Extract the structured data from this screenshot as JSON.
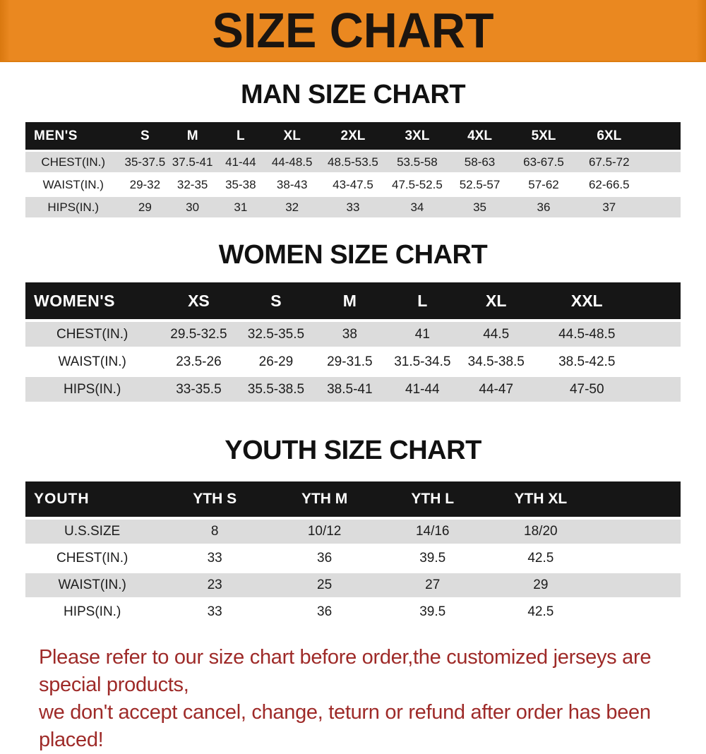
{
  "banner": {
    "title": "SIZE CHART"
  },
  "colors": {
    "banner_orange": "#E88620",
    "header_black": "#161616",
    "row_gray": "#DCDCDC",
    "footer_red": "#9E2A28"
  },
  "sections": [
    {
      "heading": "MAN SIZE CHART",
      "table": {
        "header_label": "MEN'S",
        "columns": [
          "S",
          "M",
          "L",
          "XL",
          "2XL",
          "3XL",
          "4XL",
          "5XL",
          "6XL"
        ],
        "rows": [
          {
            "label": "CHEST(IN.)",
            "values": [
              "35-37.5",
              "37.5-41",
              "41-44",
              "44-48.5",
              "48.5-53.5",
              "53.5-58",
              "58-63",
              "63-67.5",
              "67.5-72"
            ]
          },
          {
            "label": "WAIST(IN.)",
            "values": [
              "29-32",
              "32-35",
              "35-38",
              "38-43",
              "43-47.5",
              "47.5-52.5",
              "52.5-57",
              "57-62",
              "62-66.5"
            ]
          },
          {
            "label": "HIPS(IN.)",
            "values": [
              "29",
              "30",
              "31",
              "32",
              "33",
              "34",
              "35",
              "36",
              "37"
            ]
          }
        ]
      }
    },
    {
      "heading": "WOMEN SIZE CHART",
      "table": {
        "header_label": "WOMEN'S",
        "columns": [
          "XS",
          "S",
          "M",
          "L",
          "XL",
          "XXL"
        ],
        "rows": [
          {
            "label": "CHEST(IN.)",
            "values": [
              "29.5-32.5",
              "32.5-35.5",
              "38",
              "41",
              "44.5",
              "44.5-48.5"
            ]
          },
          {
            "label": "WAIST(IN.)",
            "values": [
              "23.5-26",
              "26-29",
              "29-31.5",
              "31.5-34.5",
              "34.5-38.5",
              "38.5-42.5"
            ]
          },
          {
            "label": "HIPS(IN.)",
            "values": [
              "33-35.5",
              "35.5-38.5",
              "38.5-41",
              "41-44",
              "44-47",
              "47-50"
            ]
          }
        ]
      }
    },
    {
      "heading": "YOUTH SIZE CHART",
      "table": {
        "header_label": "YOUTH",
        "columns": [
          "YTH S",
          "YTH M",
          "YTH L",
          "YTH XL"
        ],
        "rows": [
          {
            "label": "U.S.SIZE",
            "values": [
              "8",
              "10/12",
              "14/16",
              "18/20"
            ]
          },
          {
            "label": "CHEST(IN.)",
            "values": [
              "33",
              "36",
              "39.5",
              "42.5"
            ]
          },
          {
            "label": "WAIST(IN.)",
            "values": [
              "23",
              "25",
              "27",
              "29"
            ]
          },
          {
            "label": "HIPS(IN.)",
            "values": [
              "33",
              "36",
              "39.5",
              "42.5"
            ]
          }
        ]
      }
    }
  ],
  "footer": {
    "line1": "Please refer to our size chart before order,the customized jerseys are special products,",
    "line2": "we don't accept cancel, change, teturn or refund after order has been placed!"
  }
}
